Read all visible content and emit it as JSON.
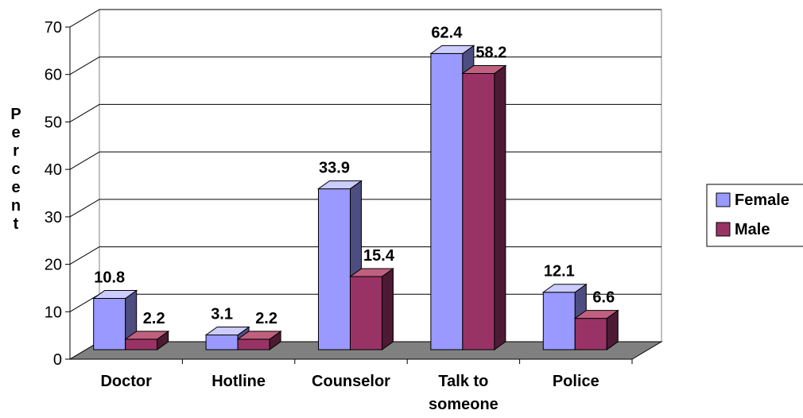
{
  "chart_data": {
    "type": "bar",
    "title": "",
    "xlabel": "",
    "ylabel": "Percent",
    "categories": [
      "Doctor",
      "Hotline",
      "Counselor",
      "Talk to someone",
      "Police"
    ],
    "category_lines": [
      [
        "Doctor"
      ],
      [
        "Hotline"
      ],
      [
        "Counselor"
      ],
      [
        "Talk to",
        "someone"
      ],
      [
        "Police"
      ]
    ],
    "series": [
      {
        "name": "Female",
        "values": [
          10.8,
          3.1,
          33.9,
          62.4,
          12.1
        ]
      },
      {
        "name": "Male",
        "values": [
          2.2,
          2.2,
          15.4,
          58.2,
          6.6
        ]
      }
    ],
    "value_labels": [
      [
        "10.8",
        "3.1",
        "33.9",
        "62.4",
        "12.1"
      ],
      [
        "2.2",
        "2.2",
        "15.4",
        "58.2",
        "6.6"
      ]
    ],
    "ylim": [
      0,
      70
    ],
    "yticks": [
      0,
      10,
      20,
      30,
      40,
      50,
      60,
      70
    ],
    "grid": true,
    "legend_position": "right",
    "three_d": true,
    "colors": {
      "Female": {
        "front": "#9999ff",
        "side": "#4d4d80",
        "top": "#ccccff"
      },
      "Male": {
        "front": "#993366",
        "side": "#4d1a33",
        "top": "#c0607f"
      },
      "floor": "#808080",
      "wall": "#ffffff",
      "gridline": "#000000"
    }
  }
}
